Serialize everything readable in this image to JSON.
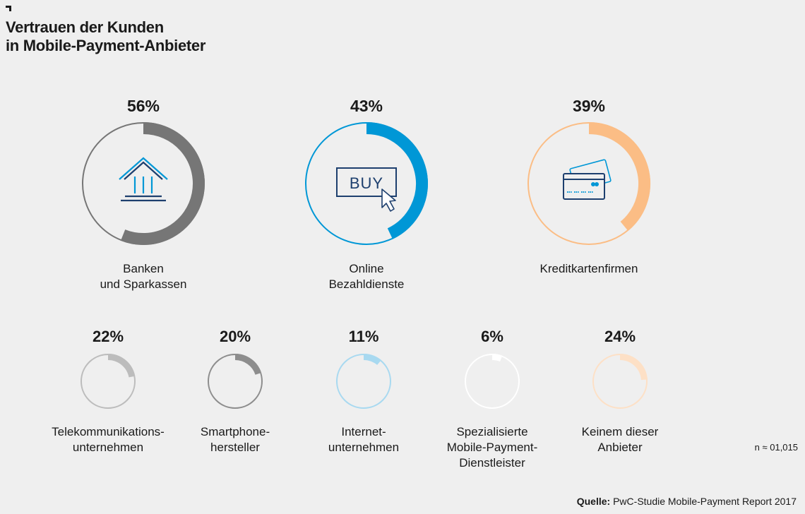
{
  "title_lines": [
    "Vertrauen der Kunden",
    "in Mobile-Payment-Anbieter"
  ],
  "chart_data": {
    "type": "donut",
    "unit": "%",
    "items": [
      {
        "label_lines": [
          "Banken",
          "und Sparkassen"
        ],
        "value": 56,
        "value_label": "56%",
        "color": "#767676",
        "icon": "bank-icon"
      },
      {
        "label_lines": [
          "Online",
          "Bezahldienste"
        ],
        "value": 43,
        "value_label": "43%",
        "color": "#0097d6",
        "icon": "buy-button-icon"
      },
      {
        "label_lines": [
          "Kreditkartenfirmen"
        ],
        "value": 39,
        "value_label": "39%",
        "color": "#fbbd85",
        "icon": "credit-card-icon"
      },
      {
        "label_lines": [
          "Telekommunikations-",
          "unternehmen"
        ],
        "value": 22,
        "value_label": "22%",
        "color": "#bcbcbc"
      },
      {
        "label_lines": [
          "Smartphone-",
          "hersteller"
        ],
        "value": 20,
        "value_label": "20%",
        "color": "#8d8d8d"
      },
      {
        "label_lines": [
          "Internet-",
          "unternehmen"
        ],
        "value": 11,
        "value_label": "11%",
        "color": "#a8d9f0"
      },
      {
        "label_lines": [
          "Spezialisierte",
          "Mobile-Payment-",
          "Dienstleister"
        ],
        "value": 6,
        "value_label": "6%",
        "color": "#ffffff"
      },
      {
        "label_lines": [
          "Keinem dieser",
          "Anbieter"
        ],
        "value": 24,
        "value_label": "24%",
        "color": "#fde0c6"
      }
    ]
  },
  "buy_text": "BUY",
  "note": "n ≈ 01,015",
  "source": {
    "label": "Quelle:",
    "text": " PwC-Studie Mobile-Payment Report 2017"
  }
}
